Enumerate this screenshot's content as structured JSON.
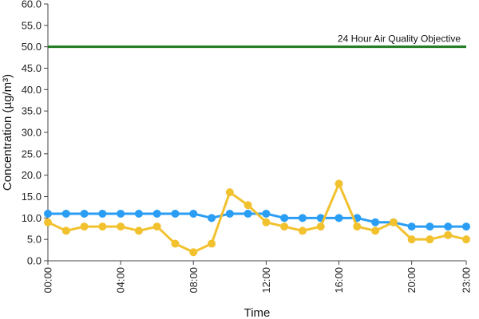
{
  "chart_data": {
    "type": "line",
    "xlabel": "Time",
    "ylabel": "Concentration (µg/m³)",
    "ylim": [
      0,
      60
    ],
    "y_ticks": [
      "0.0",
      "5.0",
      "10.0",
      "15.0",
      "20.0",
      "25.0",
      "30.0",
      "35.0",
      "40.0",
      "45.0",
      "50.0",
      "55.0",
      "60.0"
    ],
    "x_tick_labels": [
      "00:00",
      "04:00",
      "08:00",
      "12:00",
      "16:00",
      "20:00",
      "23:00"
    ],
    "x_tick_hours": [
      0,
      4,
      8,
      12,
      16,
      20,
      23
    ],
    "x_hours": [
      0,
      1,
      2,
      3,
      4,
      5,
      6,
      7,
      8,
      9,
      10,
      11,
      12,
      13,
      14,
      15,
      16,
      17,
      18,
      19,
      20,
      21,
      22,
      23
    ],
    "grid": false,
    "objective": {
      "value": 50,
      "label": "24 Hour Air Quality Objective",
      "color": "#1e7a1e"
    },
    "series": [
      {
        "color": "#2a9df4",
        "values": [
          11,
          11,
          11,
          11,
          11,
          11,
          11,
          11,
          11,
          10,
          11,
          11,
          11,
          10,
          10,
          10,
          10,
          10,
          9,
          9,
          8,
          8,
          8,
          8
        ]
      },
      {
        "color": "#f2c12e",
        "values": [
          9,
          7,
          8,
          8,
          8,
          7,
          8,
          4,
          2,
          4,
          16,
          13,
          9,
          8,
          7,
          8,
          18,
          8,
          7,
          9,
          5,
          5,
          6,
          5
        ]
      }
    ]
  }
}
